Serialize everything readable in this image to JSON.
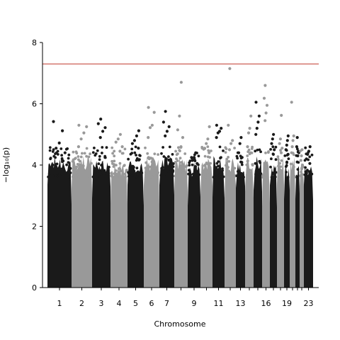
{
  "chart_data": {
    "type": "scatter",
    "title": "",
    "xlabel": "Chromosome",
    "ylabel": "−log₁₀(p)",
    "ylim": [
      0,
      8
    ],
    "yticks": [
      0,
      2,
      4,
      6,
      8
    ],
    "xtick_labels": [
      "1",
      "2",
      "3",
      "4",
      "5",
      "6",
      "7",
      "9",
      "11",
      "13",
      "16",
      "19",
      "23"
    ],
    "significance_line": {
      "value": 7.3,
      "color": "#c0392b"
    },
    "grid": false,
    "legend": "none",
    "colors": [
      "#1a1a1a",
      "#999999"
    ],
    "chromosomes": [
      {
        "name": "1",
        "label": "1",
        "max": 5.42,
        "top": [
          5.42,
          5.12,
          4.72,
          4.55,
          4.4
        ]
      },
      {
        "name": "2",
        "label": "2",
        "max": 5.3,
        "top": [
          5.3,
          5.25,
          5.05,
          4.85,
          4.6
        ]
      },
      {
        "name": "3",
        "label": "3",
        "max": 5.5,
        "top": [
          5.5,
          5.35,
          5.22,
          5.1,
          4.9
        ]
      },
      {
        "name": "4",
        "label": "4",
        "max": 5.0,
        "top": [
          5.0,
          4.85,
          4.75,
          4.6,
          4.45
        ]
      },
      {
        "name": "5",
        "label": "5",
        "max": 5.12,
        "top": [
          5.12,
          4.95,
          4.8,
          4.7,
          4.55
        ]
      },
      {
        "name": "6",
        "label": "6",
        "max": 5.88,
        "top": [
          5.88,
          5.72,
          5.3,
          5.22,
          4.9
        ]
      },
      {
        "name": "7",
        "label": "7",
        "max": 5.75,
        "top": [
          5.75,
          5.4,
          5.25,
          5.1,
          4.95
        ]
      },
      {
        "name": "8",
        "label": "",
        "max": 6.7,
        "top": [
          6.7,
          5.6,
          5.15,
          4.9,
          4.6
        ]
      },
      {
        "name": "9",
        "label": "9",
        "max": 4.4,
        "top": [
          4.4,
          4.25,
          4.15,
          4.05,
          3.95
        ]
      },
      {
        "name": "10",
        "label": "",
        "max": 5.25,
        "top": [
          5.25,
          4.85,
          4.7,
          4.55,
          4.4
        ]
      },
      {
        "name": "11",
        "label": "11",
        "max": 5.3,
        "top": [
          5.3,
          5.2,
          5.1,
          5.05,
          4.9
        ]
      },
      {
        "name": "12",
        "label": "",
        "max": 7.15,
        "top": [
          7.15,
          5.3,
          4.8,
          4.7,
          4.5
        ]
      },
      {
        "name": "13",
        "label": "13",
        "max": 4.9,
        "top": [
          4.9,
          4.7,
          4.4,
          4.25,
          4.1
        ]
      },
      {
        "name": "14",
        "label": "",
        "max": 5.6,
        "top": [
          5.6,
          5.2,
          5.05,
          4.6,
          4.4
        ]
      },
      {
        "name": "15",
        "label": "",
        "max": 6.05,
        "top": [
          6.05,
          5.6,
          5.4,
          5.2,
          5.0
        ]
      },
      {
        "name": "16",
        "label": "16",
        "max": 6.6,
        "top": [
          6.6,
          6.18,
          5.95,
          5.7,
          5.45
        ]
      },
      {
        "name": "17",
        "label": "",
        "max": 5.0,
        "top": [
          5.0,
          4.85,
          4.7,
          4.5,
          4.35
        ]
      },
      {
        "name": "18",
        "label": "",
        "max": 5.62,
        "top": [
          5.62,
          4.85,
          4.7,
          4.55,
          4.4
        ]
      },
      {
        "name": "19",
        "label": "19",
        "max": 4.95,
        "top": [
          4.95,
          4.8,
          4.65,
          4.5,
          4.35
        ]
      },
      {
        "name": "20",
        "label": "",
        "max": 6.05,
        "top": [
          6.05,
          4.95,
          4.8,
          4.6,
          4.4
        ]
      },
      {
        "name": "21",
        "label": "",
        "max": 4.9,
        "top": [
          4.9,
          4.6,
          4.45,
          4.3,
          4.1
        ]
      },
      {
        "name": "22",
        "label": "",
        "max": 4.5,
        "top": [
          4.5,
          4.3,
          4.15,
          4.0,
          3.9
        ]
      },
      {
        "name": "23",
        "label": "23",
        "max": 4.6,
        "top": [
          4.6,
          4.45,
          4.35,
          4.2,
          4.05
        ]
      }
    ]
  }
}
